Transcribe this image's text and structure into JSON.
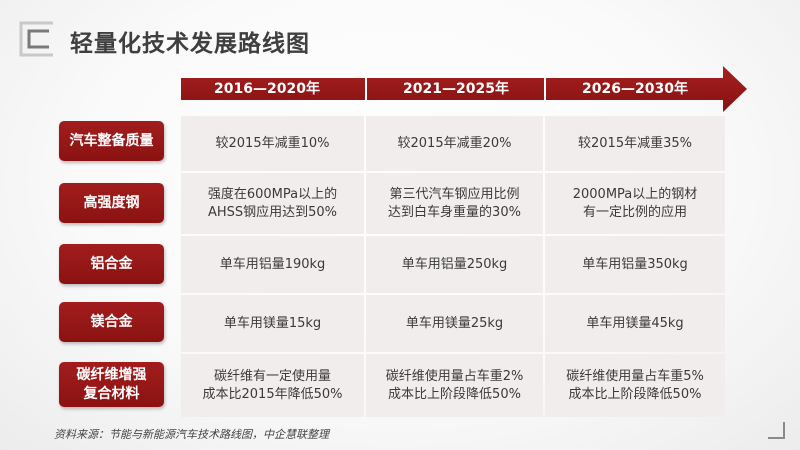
{
  "title": "轻量化技术发展路线图",
  "periods": [
    "2016—2020年",
    "2021—2025年",
    "2026—2030年"
  ],
  "rows": [
    {
      "label": "汽车整备质量",
      "cells": [
        "较2015年减重10%",
        "较2015年减重20%",
        "较2015年减重35%"
      ]
    },
    {
      "label": "高强度钢",
      "cells": [
        "强度在600MPa以上的\nAHSS钢应用达到50%",
        "第三代汽车钢应用比例\n达到白车身重量的30%",
        "2000MPa以上的钢材\n有一定比例的应用"
      ]
    },
    {
      "label": "铝合金",
      "cells": [
        "单车用铝量190kg",
        "单车用铝量250kg",
        "单车用铝量350kg"
      ]
    },
    {
      "label": "镁合金",
      "cells": [
        "单车用镁量15kg",
        "单车用镁量25kg",
        "单车用镁量45kg"
      ]
    },
    {
      "label": "碳纤维增强\n复合材料",
      "cells": [
        "碳纤维有一定使用量\n成本比2015年降低50%",
        "碳纤维使用量占车重2%\n成本比上阶段降低50%",
        "碳纤维使用量占车重5%\n成本比上阶段降低50%"
      ]
    }
  ],
  "source": "资料来源：节能与新能源汽车技术路线图，中企慧联整理",
  "colors": {
    "accent": "#9b1a1a",
    "cell_bg": "#f2eded",
    "title_text": "#3f3f3f"
  },
  "icons": {
    "corner_top_left": "corner-bracket-icon",
    "corner_bottom_right": "corner-bracket-icon"
  }
}
